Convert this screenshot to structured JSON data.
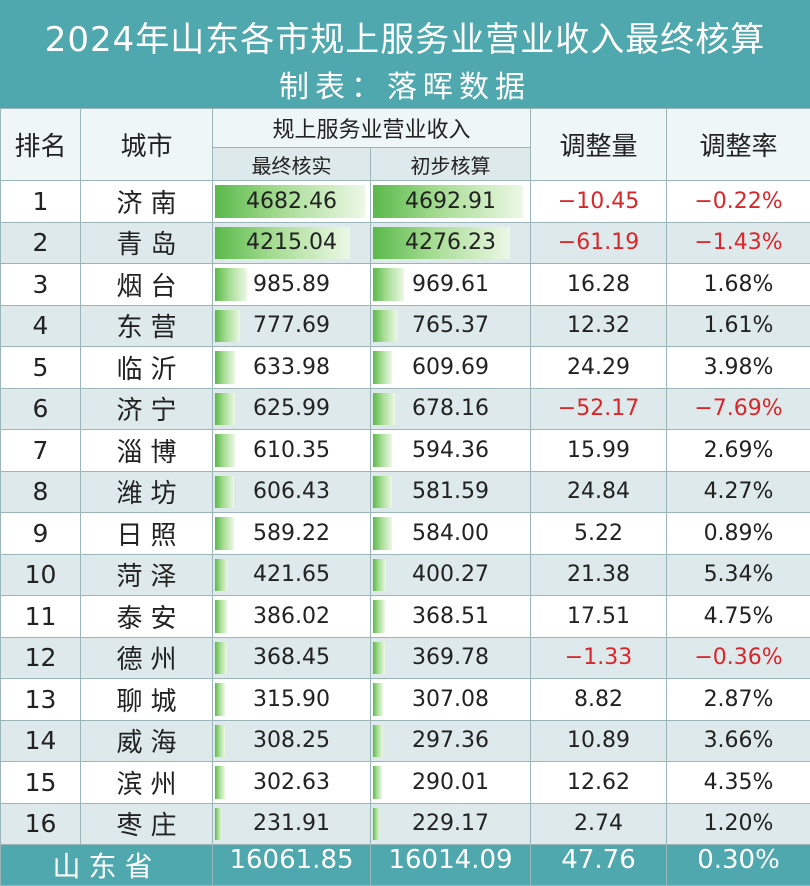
{
  "header": {
    "title": "2024年山东各市规上服务业营业收入最终核算",
    "subtitle": "制表：落晖数据"
  },
  "columns": {
    "rank": "排名",
    "city": "城市",
    "revenue_group": "规上服务业营业收入",
    "final": "最终核实",
    "initial": "初步核算",
    "adjustment": "调整量",
    "rate": "调整率"
  },
  "chart_data": {
    "type": "table",
    "title": "2024年山东各市规上服务业营业收入最终核算",
    "columns": [
      "排名",
      "城市",
      "最终核实",
      "初步核算",
      "调整量",
      "调整率"
    ],
    "rows": [
      {
        "rank": "1",
        "city": "济南",
        "final": "4682.46",
        "initial": "4692.91",
        "adjustment": "−10.45",
        "rate": "−0.22%",
        "negative": true
      },
      {
        "rank": "2",
        "city": "青岛",
        "final": "4215.04",
        "initial": "4276.23",
        "adjustment": "−61.19",
        "rate": "−1.43%",
        "negative": true
      },
      {
        "rank": "3",
        "city": "烟台",
        "final": "985.89",
        "initial": "969.61",
        "adjustment": "16.28",
        "rate": "1.68%",
        "negative": false
      },
      {
        "rank": "4",
        "city": "东营",
        "final": "777.69",
        "initial": "765.37",
        "adjustment": "12.32",
        "rate": "1.61%",
        "negative": false
      },
      {
        "rank": "5",
        "city": "临沂",
        "final": "633.98",
        "initial": "609.69",
        "adjustment": "24.29",
        "rate": "3.98%",
        "negative": false
      },
      {
        "rank": "6",
        "city": "济宁",
        "final": "625.99",
        "initial": "678.16",
        "adjustment": "−52.17",
        "rate": "−7.69%",
        "negative": true
      },
      {
        "rank": "7",
        "city": "淄博",
        "final": "610.35",
        "initial": "594.36",
        "adjustment": "15.99",
        "rate": "2.69%",
        "negative": false
      },
      {
        "rank": "8",
        "city": "潍坊",
        "final": "606.43",
        "initial": "581.59",
        "adjustment": "24.84",
        "rate": "4.27%",
        "negative": false
      },
      {
        "rank": "9",
        "city": "日照",
        "final": "589.22",
        "initial": "584.00",
        "adjustment": "5.22",
        "rate": "0.89%",
        "negative": false
      },
      {
        "rank": "10",
        "city": "菏泽",
        "final": "421.65",
        "initial": "400.27",
        "adjustment": "21.38",
        "rate": "5.34%",
        "negative": false
      },
      {
        "rank": "11",
        "city": "泰安",
        "final": "386.02",
        "initial": "368.51",
        "adjustment": "17.51",
        "rate": "4.75%",
        "negative": false
      },
      {
        "rank": "12",
        "city": "德州",
        "final": "368.45",
        "initial": "369.78",
        "adjustment": "−1.33",
        "rate": "−0.36%",
        "negative": true
      },
      {
        "rank": "13",
        "city": "聊城",
        "final": "315.90",
        "initial": "307.08",
        "adjustment": "8.82",
        "rate": "2.87%",
        "negative": false
      },
      {
        "rank": "14",
        "city": "威海",
        "final": "308.25",
        "initial": "297.36",
        "adjustment": "10.89",
        "rate": "3.66%",
        "negative": false
      },
      {
        "rank": "15",
        "city": "滨州",
        "final": "302.63",
        "initial": "290.01",
        "adjustment": "12.62",
        "rate": "4.35%",
        "negative": false
      },
      {
        "rank": "16",
        "city": "枣庄",
        "final": "231.91",
        "initial": "229.17",
        "adjustment": "2.74",
        "rate": "1.20%",
        "negative": false
      }
    ],
    "total": {
      "label": "山东省",
      "final": "16061.85",
      "initial": "16014.09",
      "adjustment": "47.76",
      "rate": "0.30%"
    },
    "bar_max": 4692.91
  },
  "colors": {
    "header_bg": "#4fa8ad",
    "negative": "#d8262b",
    "bar_green": "#5ab94a",
    "row_alt": "#dde9ea"
  }
}
